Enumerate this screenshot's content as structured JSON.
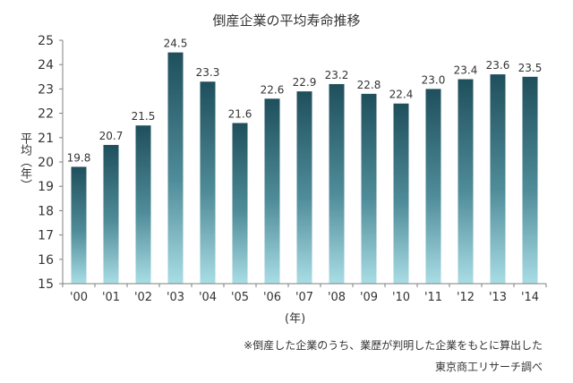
{
  "chart_data": {
    "type": "bar",
    "title": "倒産企業の平均寿命推移",
    "ylabel": "平均（年）",
    "xlabel": "(年)",
    "categories": [
      "'00",
      "'01",
      "'02",
      "'03",
      "'04",
      "'05",
      "'06",
      "'07",
      "'08",
      "'09",
      "'10",
      "'11",
      "'12",
      "'13",
      "'14"
    ],
    "values": [
      19.8,
      20.7,
      21.5,
      24.5,
      23.3,
      21.6,
      22.6,
      22.9,
      23.2,
      22.8,
      22.4,
      23.0,
      23.4,
      23.6,
      23.5
    ],
    "value_labels": [
      "19.8",
      "20.7",
      "21.5",
      "24.5",
      "23.3",
      "21.6",
      "22.6",
      "22.9",
      "23.2",
      "22.8",
      "22.4",
      "23.0",
      "23.4",
      "23.6",
      "23.5"
    ],
    "ylim": [
      15,
      25
    ],
    "yticks": [
      15,
      16,
      17,
      18,
      19,
      20,
      21,
      22,
      23,
      24,
      25
    ],
    "grid": false,
    "legend": "none"
  },
  "note": "※倒産した企業のうち、業歴が判明した企業をもとに算出した",
  "source": "東京商工リサーチ調べ",
  "colors": {
    "bar_dark": "#1f4f5c",
    "bar_light": "#a9dde5",
    "axis": "#7f7f7f"
  }
}
